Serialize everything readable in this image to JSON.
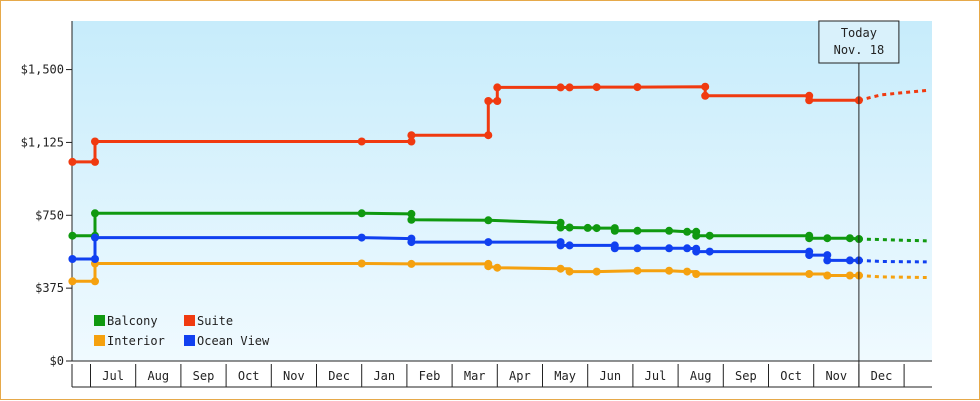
{
  "chart_data": {
    "type": "line",
    "title": "",
    "xlabel": "",
    "ylabel": "",
    "ylim": [
      0,
      1750
    ],
    "y_ticks": [
      0,
      375,
      750,
      1125,
      1500
    ],
    "y_tick_labels": [
      "$0",
      "$375",
      "$750",
      "$1,125",
      "$1,500"
    ],
    "x_month_labels": [
      "Jul",
      "Aug",
      "Sep",
      "Oct",
      "Nov",
      "Dec",
      "Jan",
      "Feb",
      "Mar",
      "Apr",
      "May",
      "Jun",
      "Jul",
      "Aug",
      "Sep",
      "Oct",
      "Nov",
      "Dec"
    ],
    "x_unit": "months",
    "xlim": [
      -0.4,
      18.5
    ],
    "today_x": 17.0,
    "today_label_line1": "Today",
    "today_label_line2": "Nov. 18",
    "grid": false,
    "legend_position": "bottom-left",
    "series": [
      {
        "name": "Balcony",
        "color": "#109910",
        "points": [
          [
            -0.4,
            645
          ],
          [
            0.1,
            645
          ],
          [
            0.1,
            760
          ],
          [
            6.0,
            760
          ],
          [
            7.1,
            757
          ],
          [
            7.1,
            727
          ],
          [
            8.8,
            724
          ],
          [
            10.4,
            712
          ],
          [
            10.4,
            687
          ],
          [
            10.6,
            687
          ],
          [
            11.0,
            685
          ],
          [
            11.2,
            684
          ],
          [
            11.6,
            684
          ],
          [
            11.6,
            670
          ],
          [
            12.1,
            670
          ],
          [
            12.8,
            670
          ],
          [
            13.2,
            665
          ],
          [
            13.4,
            665
          ],
          [
            13.4,
            645
          ],
          [
            13.7,
            645
          ],
          [
            15.9,
            645
          ],
          [
            15.9,
            632
          ],
          [
            16.3,
            632
          ],
          [
            16.8,
            632
          ],
          [
            17.0,
            628
          ]
        ],
        "forecast": [
          [
            17.0,
            628
          ],
          [
            17.5,
            625
          ],
          [
            18.5,
            618
          ]
        ],
        "markers": [
          [
            -0.4,
            645
          ],
          [
            0.1,
            645
          ],
          [
            0.1,
            760
          ],
          [
            6.0,
            760
          ],
          [
            7.1,
            757
          ],
          [
            7.1,
            727
          ],
          [
            8.8,
            724
          ],
          [
            10.4,
            712
          ],
          [
            10.4,
            687
          ],
          [
            10.6,
            687
          ],
          [
            11.0,
            685
          ],
          [
            11.2,
            684
          ],
          [
            11.6,
            684
          ],
          [
            11.6,
            670
          ],
          [
            12.1,
            670
          ],
          [
            12.8,
            670
          ],
          [
            13.2,
            665
          ],
          [
            13.4,
            665
          ],
          [
            13.4,
            645
          ],
          [
            13.7,
            645
          ],
          [
            15.9,
            645
          ],
          [
            15.9,
            632
          ],
          [
            16.3,
            632
          ],
          [
            16.8,
            632
          ],
          [
            17.0,
            628
          ]
        ]
      },
      {
        "name": "Interior",
        "color": "#f5a10f",
        "points": [
          [
            -0.4,
            410
          ],
          [
            0.1,
            410
          ],
          [
            0.1,
            502
          ],
          [
            6.0,
            502
          ],
          [
            7.1,
            500
          ],
          [
            8.8,
            500
          ],
          [
            8.8,
            488
          ],
          [
            9.0,
            480
          ],
          [
            10.4,
            475
          ],
          [
            10.6,
            475
          ],
          [
            10.6,
            460
          ],
          [
            11.2,
            460
          ],
          [
            12.1,
            465
          ],
          [
            12.8,
            465
          ],
          [
            13.2,
            460
          ],
          [
            13.4,
            460
          ],
          [
            13.4,
            448
          ],
          [
            15.9,
            448
          ],
          [
            16.3,
            448
          ],
          [
            16.3,
            440
          ],
          [
            16.8,
            440
          ],
          [
            17.0,
            440
          ]
        ],
        "forecast": [
          [
            17.0,
            440
          ],
          [
            17.5,
            433
          ],
          [
            18.5,
            430
          ]
        ],
        "markers": [
          [
            -0.4,
            410
          ],
          [
            0.1,
            410
          ],
          [
            0.1,
            502
          ],
          [
            6.0,
            502
          ],
          [
            7.1,
            500
          ],
          [
            8.8,
            500
          ],
          [
            8.8,
            488
          ],
          [
            9.0,
            480
          ],
          [
            10.4,
            475
          ],
          [
            10.6,
            460
          ],
          [
            11.2,
            460
          ],
          [
            12.1,
            465
          ],
          [
            12.8,
            465
          ],
          [
            13.2,
            460
          ],
          [
            13.4,
            448
          ],
          [
            15.9,
            448
          ],
          [
            16.3,
            440
          ],
          [
            16.8,
            440
          ],
          [
            17.0,
            440
          ]
        ]
      },
      {
        "name": "Suite",
        "color": "#f03a10",
        "points": [
          [
            -0.4,
            1025
          ],
          [
            0.1,
            1025
          ],
          [
            0.1,
            1130
          ],
          [
            6.0,
            1130
          ],
          [
            7.1,
            1130
          ],
          [
            7.1,
            1162
          ],
          [
            8.8,
            1162
          ],
          [
            8.8,
            1338
          ],
          [
            9.0,
            1338
          ],
          [
            9.0,
            1408
          ],
          [
            10.4,
            1408
          ],
          [
            10.6,
            1408
          ],
          [
            11.2,
            1410
          ],
          [
            12.1,
            1410
          ],
          [
            13.6,
            1412
          ],
          [
            13.6,
            1365
          ],
          [
            15.9,
            1365
          ],
          [
            15.9,
            1342
          ],
          [
            16.3,
            1342
          ],
          [
            17.0,
            1342
          ]
        ],
        "forecast": [
          [
            17.0,
            1342
          ],
          [
            17.5,
            1370
          ],
          [
            18.5,
            1393
          ]
        ],
        "markers": [
          [
            -0.4,
            1025
          ],
          [
            0.1,
            1025
          ],
          [
            0.1,
            1130
          ],
          [
            6.0,
            1130
          ],
          [
            7.1,
            1130
          ],
          [
            7.1,
            1162
          ],
          [
            8.8,
            1162
          ],
          [
            8.8,
            1338
          ],
          [
            9.0,
            1338
          ],
          [
            9.0,
            1408
          ],
          [
            10.4,
            1408
          ],
          [
            10.6,
            1408
          ],
          [
            11.2,
            1410
          ],
          [
            12.1,
            1410
          ],
          [
            13.6,
            1412
          ],
          [
            13.6,
            1365
          ],
          [
            15.9,
            1365
          ],
          [
            15.9,
            1342
          ],
          [
            17.0,
            1342
          ]
        ]
      },
      {
        "name": "Ocean View",
        "color": "#1040f0",
        "points": [
          [
            -0.4,
            525
          ],
          [
            0.1,
            525
          ],
          [
            0.1,
            635
          ],
          [
            6.0,
            635
          ],
          [
            7.1,
            630
          ],
          [
            7.1,
            612
          ],
          [
            8.8,
            612
          ],
          [
            10.4,
            612
          ],
          [
            10.4,
            595
          ],
          [
            10.6,
            595
          ],
          [
            11.6,
            595
          ],
          [
            11.6,
            580
          ],
          [
            12.1,
            580
          ],
          [
            12.8,
            580
          ],
          [
            13.2,
            580
          ],
          [
            13.4,
            578
          ],
          [
            13.4,
            563
          ],
          [
            13.7,
            563
          ],
          [
            15.9,
            563
          ],
          [
            15.9,
            545
          ],
          [
            16.3,
            545
          ],
          [
            16.3,
            518
          ],
          [
            16.8,
            518
          ],
          [
            17.0,
            518
          ]
        ],
        "forecast": [
          [
            17.0,
            518
          ],
          [
            17.5,
            512
          ],
          [
            18.5,
            510
          ]
        ],
        "markers": [
          [
            -0.4,
            525
          ],
          [
            0.1,
            525
          ],
          [
            0.1,
            635
          ],
          [
            6.0,
            635
          ],
          [
            7.1,
            630
          ],
          [
            7.1,
            612
          ],
          [
            8.8,
            612
          ],
          [
            10.4,
            612
          ],
          [
            10.4,
            595
          ],
          [
            10.6,
            595
          ],
          [
            11.6,
            595
          ],
          [
            11.6,
            580
          ],
          [
            12.1,
            580
          ],
          [
            12.8,
            580
          ],
          [
            13.2,
            580
          ],
          [
            13.4,
            578
          ],
          [
            13.4,
            563
          ],
          [
            13.7,
            563
          ],
          [
            15.9,
            563
          ],
          [
            15.9,
            545
          ],
          [
            16.3,
            545
          ],
          [
            16.3,
            518
          ],
          [
            16.8,
            518
          ],
          [
            17.0,
            518
          ]
        ]
      }
    ]
  }
}
